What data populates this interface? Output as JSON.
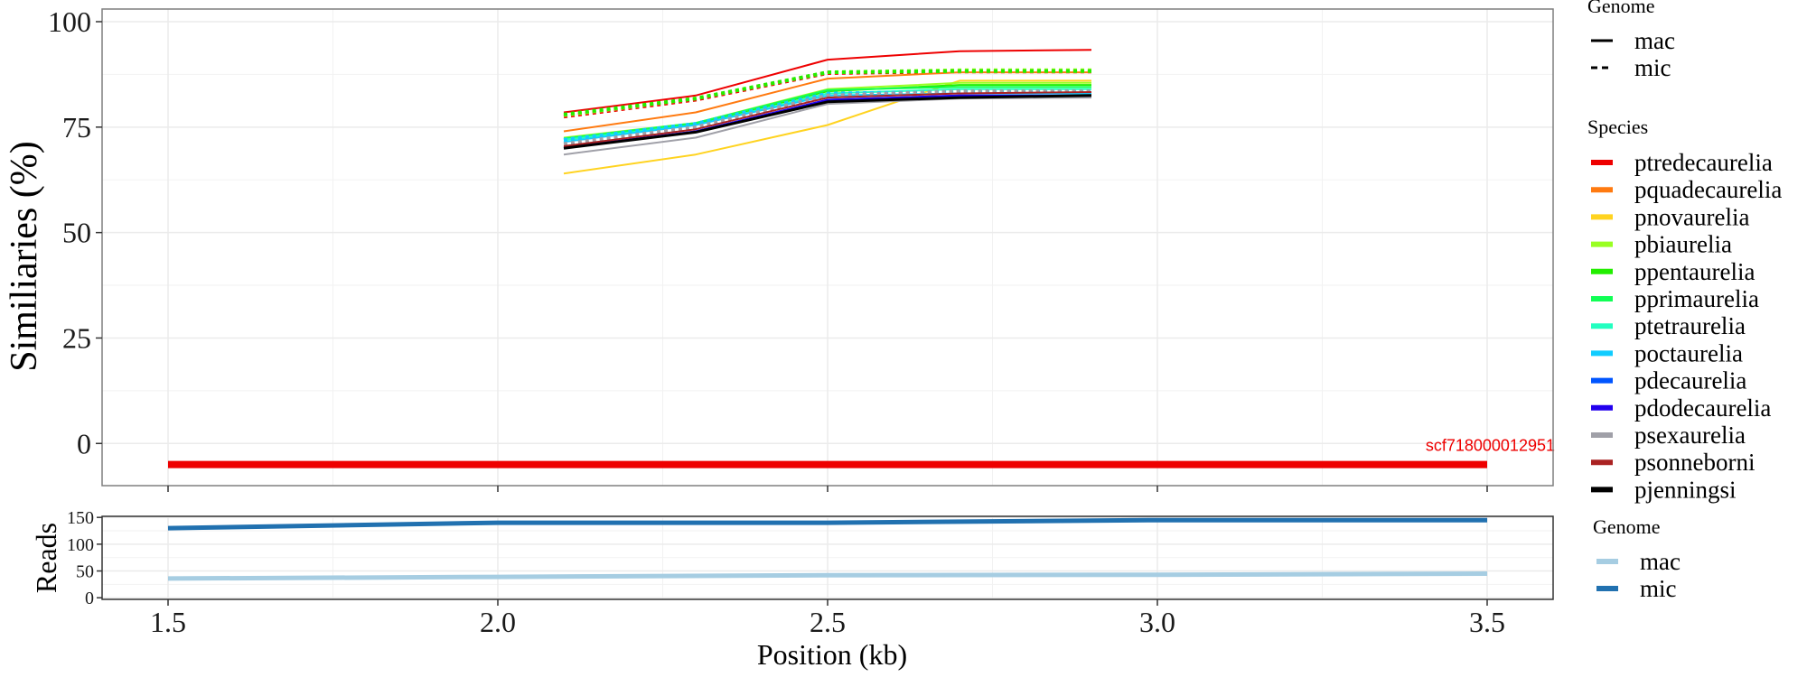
{
  "chart_data": [
    {
      "type": "line",
      "panel": "similarity",
      "title": "",
      "xlabel": "Position (kb)",
      "ylabel": "Similiaries (%)",
      "xlim": [
        1.4,
        3.6
      ],
      "ylim": [
        -10,
        103
      ],
      "yticks": [
        0,
        25,
        50,
        75,
        100
      ],
      "ytick_labels": [
        "0",
        "25",
        "50",
        "75",
        "100"
      ],
      "xticks": [
        1.5,
        2.0,
        2.5,
        3.0,
        3.5
      ],
      "grid": true,
      "x": [
        2.1,
        2.3,
        2.5,
        2.7,
        2.9
      ],
      "series": [
        {
          "name": "ptredecaurelia",
          "genome": "mac",
          "color": "#ee0000",
          "values": [
            78.5,
            82.5,
            91,
            93,
            93.3
          ]
        },
        {
          "name": "ptredecaurelia",
          "genome": "mic",
          "color": "#ee0000",
          "values": [
            77.5,
            81.5,
            87.8,
            88.2,
            88.2
          ]
        },
        {
          "name": "pquadecaurelia",
          "genome": "mac",
          "color": "#ff7a10",
          "values": [
            74,
            78.5,
            86.5,
            88,
            88
          ]
        },
        {
          "name": "pnovaurelia",
          "genome": "mac",
          "color": "#ffd320",
          "values": [
            64,
            68.5,
            75.5,
            86,
            86
          ]
        },
        {
          "name": "pbiaurelia",
          "genome": "mac",
          "color": "#99ff22",
          "values": [
            72.5,
            76,
            84,
            85.5,
            85.5
          ]
        },
        {
          "name": "pbiaurelia",
          "genome": "mic",
          "color": "#99ff22",
          "values": [
            77.8,
            81.8,
            88,
            88.5,
            88.5
          ]
        },
        {
          "name": "ppentaurelia",
          "genome": "mac",
          "color": "#22ee00",
          "values": [
            72,
            75.8,
            83.5,
            85,
            85
          ]
        },
        {
          "name": "ppentaurelia",
          "genome": "mic",
          "color": "#22ee00",
          "values": [
            78,
            81.8,
            88,
            88.3,
            88.3
          ]
        },
        {
          "name": "pprimaurelia",
          "genome": "mac",
          "color": "#11ff55",
          "values": [
            72.3,
            76,
            83.8,
            84.5,
            84.5
          ]
        },
        {
          "name": "ptetraurelia",
          "genome": "mac",
          "color": "#22ffc0",
          "values": [
            72,
            75.5,
            83,
            84,
            84
          ]
        },
        {
          "name": "poctaurelia",
          "genome": "mac",
          "color": "#10ccff",
          "values": [
            71.5,
            75.5,
            82.5,
            83,
            83
          ]
        },
        {
          "name": "poctaurelia",
          "genome": "mic",
          "color": "#10ccff",
          "values": [
            72,
            75.8,
            83,
            83.3,
            83.3
          ]
        },
        {
          "name": "pdecaurelia",
          "genome": "mac",
          "color": "#0055ff",
          "values": [
            70,
            74,
            81.5,
            82.5,
            82.3
          ]
        },
        {
          "name": "pdodecaurelia",
          "genome": "mac",
          "color": "#2200ee",
          "values": [
            70.2,
            74,
            81.5,
            82.5,
            82.5
          ]
        },
        {
          "name": "psexaurelia",
          "genome": "mac",
          "color": "#a0a0a8",
          "values": [
            68.5,
            72.5,
            80.5,
            81.8,
            82
          ]
        },
        {
          "name": "psexaurelia",
          "genome": "mic",
          "color": "#a0a0a8",
          "values": [
            71,
            75,
            82.5,
            83.5,
            83.5
          ]
        },
        {
          "name": "psonneborni",
          "genome": "mac",
          "color": "#aa2222",
          "values": [
            70.5,
            74.5,
            82,
            83,
            83.3
          ]
        },
        {
          "name": "pjenningsi",
          "genome": "mac",
          "color": "#000000",
          "values": [
            70,
            73.8,
            81,
            82,
            82.5
          ]
        }
      ],
      "segment": {
        "label": "scf718000012951",
        "color": "#ee0000",
        "x_start": 1.5,
        "x_end": 3.5,
        "y": -5
      }
    },
    {
      "type": "line",
      "panel": "reads",
      "xlabel": "Position (kb)",
      "ylabel": "Reads",
      "xlim": [
        1.4,
        3.6
      ],
      "ylim": [
        -3,
        152
      ],
      "yticks": [
        0,
        50,
        100,
        150
      ],
      "ytick_labels": [
        "0",
        "50",
        "100",
        "150"
      ],
      "xticks": [
        1.5,
        2.0,
        2.5,
        3.0,
        3.5
      ],
      "xtick_labels": [
        "1.5",
        "2.0",
        "2.5",
        "3.0",
        "3.5"
      ],
      "grid": true,
      "x": [
        1.5,
        2.0,
        2.5,
        3.0,
        3.5
      ],
      "series": [
        {
          "name": "mac",
          "color": "#a6cde2",
          "values": [
            36,
            39,
            42,
            43,
            45
          ]
        },
        {
          "name": "mic",
          "color": "#2171b0",
          "values": [
            130,
            140,
            140,
            145,
            145
          ]
        }
      ]
    }
  ],
  "legend": {
    "genome_title": "Genome",
    "genome_items": [
      {
        "label": "mac",
        "linetype": "solid"
      },
      {
        "label": "mic",
        "linetype": "dashed"
      }
    ],
    "species_title": "Species",
    "species_items": [
      {
        "label": "ptredecaurelia",
        "color": "#ee0000"
      },
      {
        "label": "pquadecaurelia",
        "color": "#ff7a10"
      },
      {
        "label": "pnovaurelia",
        "color": "#ffd320"
      },
      {
        "label": "pbiaurelia",
        "color": "#99ff22"
      },
      {
        "label": "ppentaurelia",
        "color": "#22ee00"
      },
      {
        "label": "pprimaurelia",
        "color": "#11ff55"
      },
      {
        "label": "ptetraurelia",
        "color": "#22ffc0"
      },
      {
        "label": "poctaurelia",
        "color": "#10ccff"
      },
      {
        "label": "pdecaurelia",
        "color": "#0055ff"
      },
      {
        "label": "pdodecaurelia",
        "color": "#2200ee"
      },
      {
        "label": "psexaurelia",
        "color": "#a0a0a8"
      },
      {
        "label": "psonneborni",
        "color": "#aa2222"
      },
      {
        "label": "pjenningsi",
        "color": "#000000"
      }
    ],
    "reads_genome_title": "Genome",
    "reads_genome_items": [
      {
        "label": "mac",
        "color": "#a6cde2"
      },
      {
        "label": "mic",
        "color": "#2171b0"
      }
    ]
  }
}
